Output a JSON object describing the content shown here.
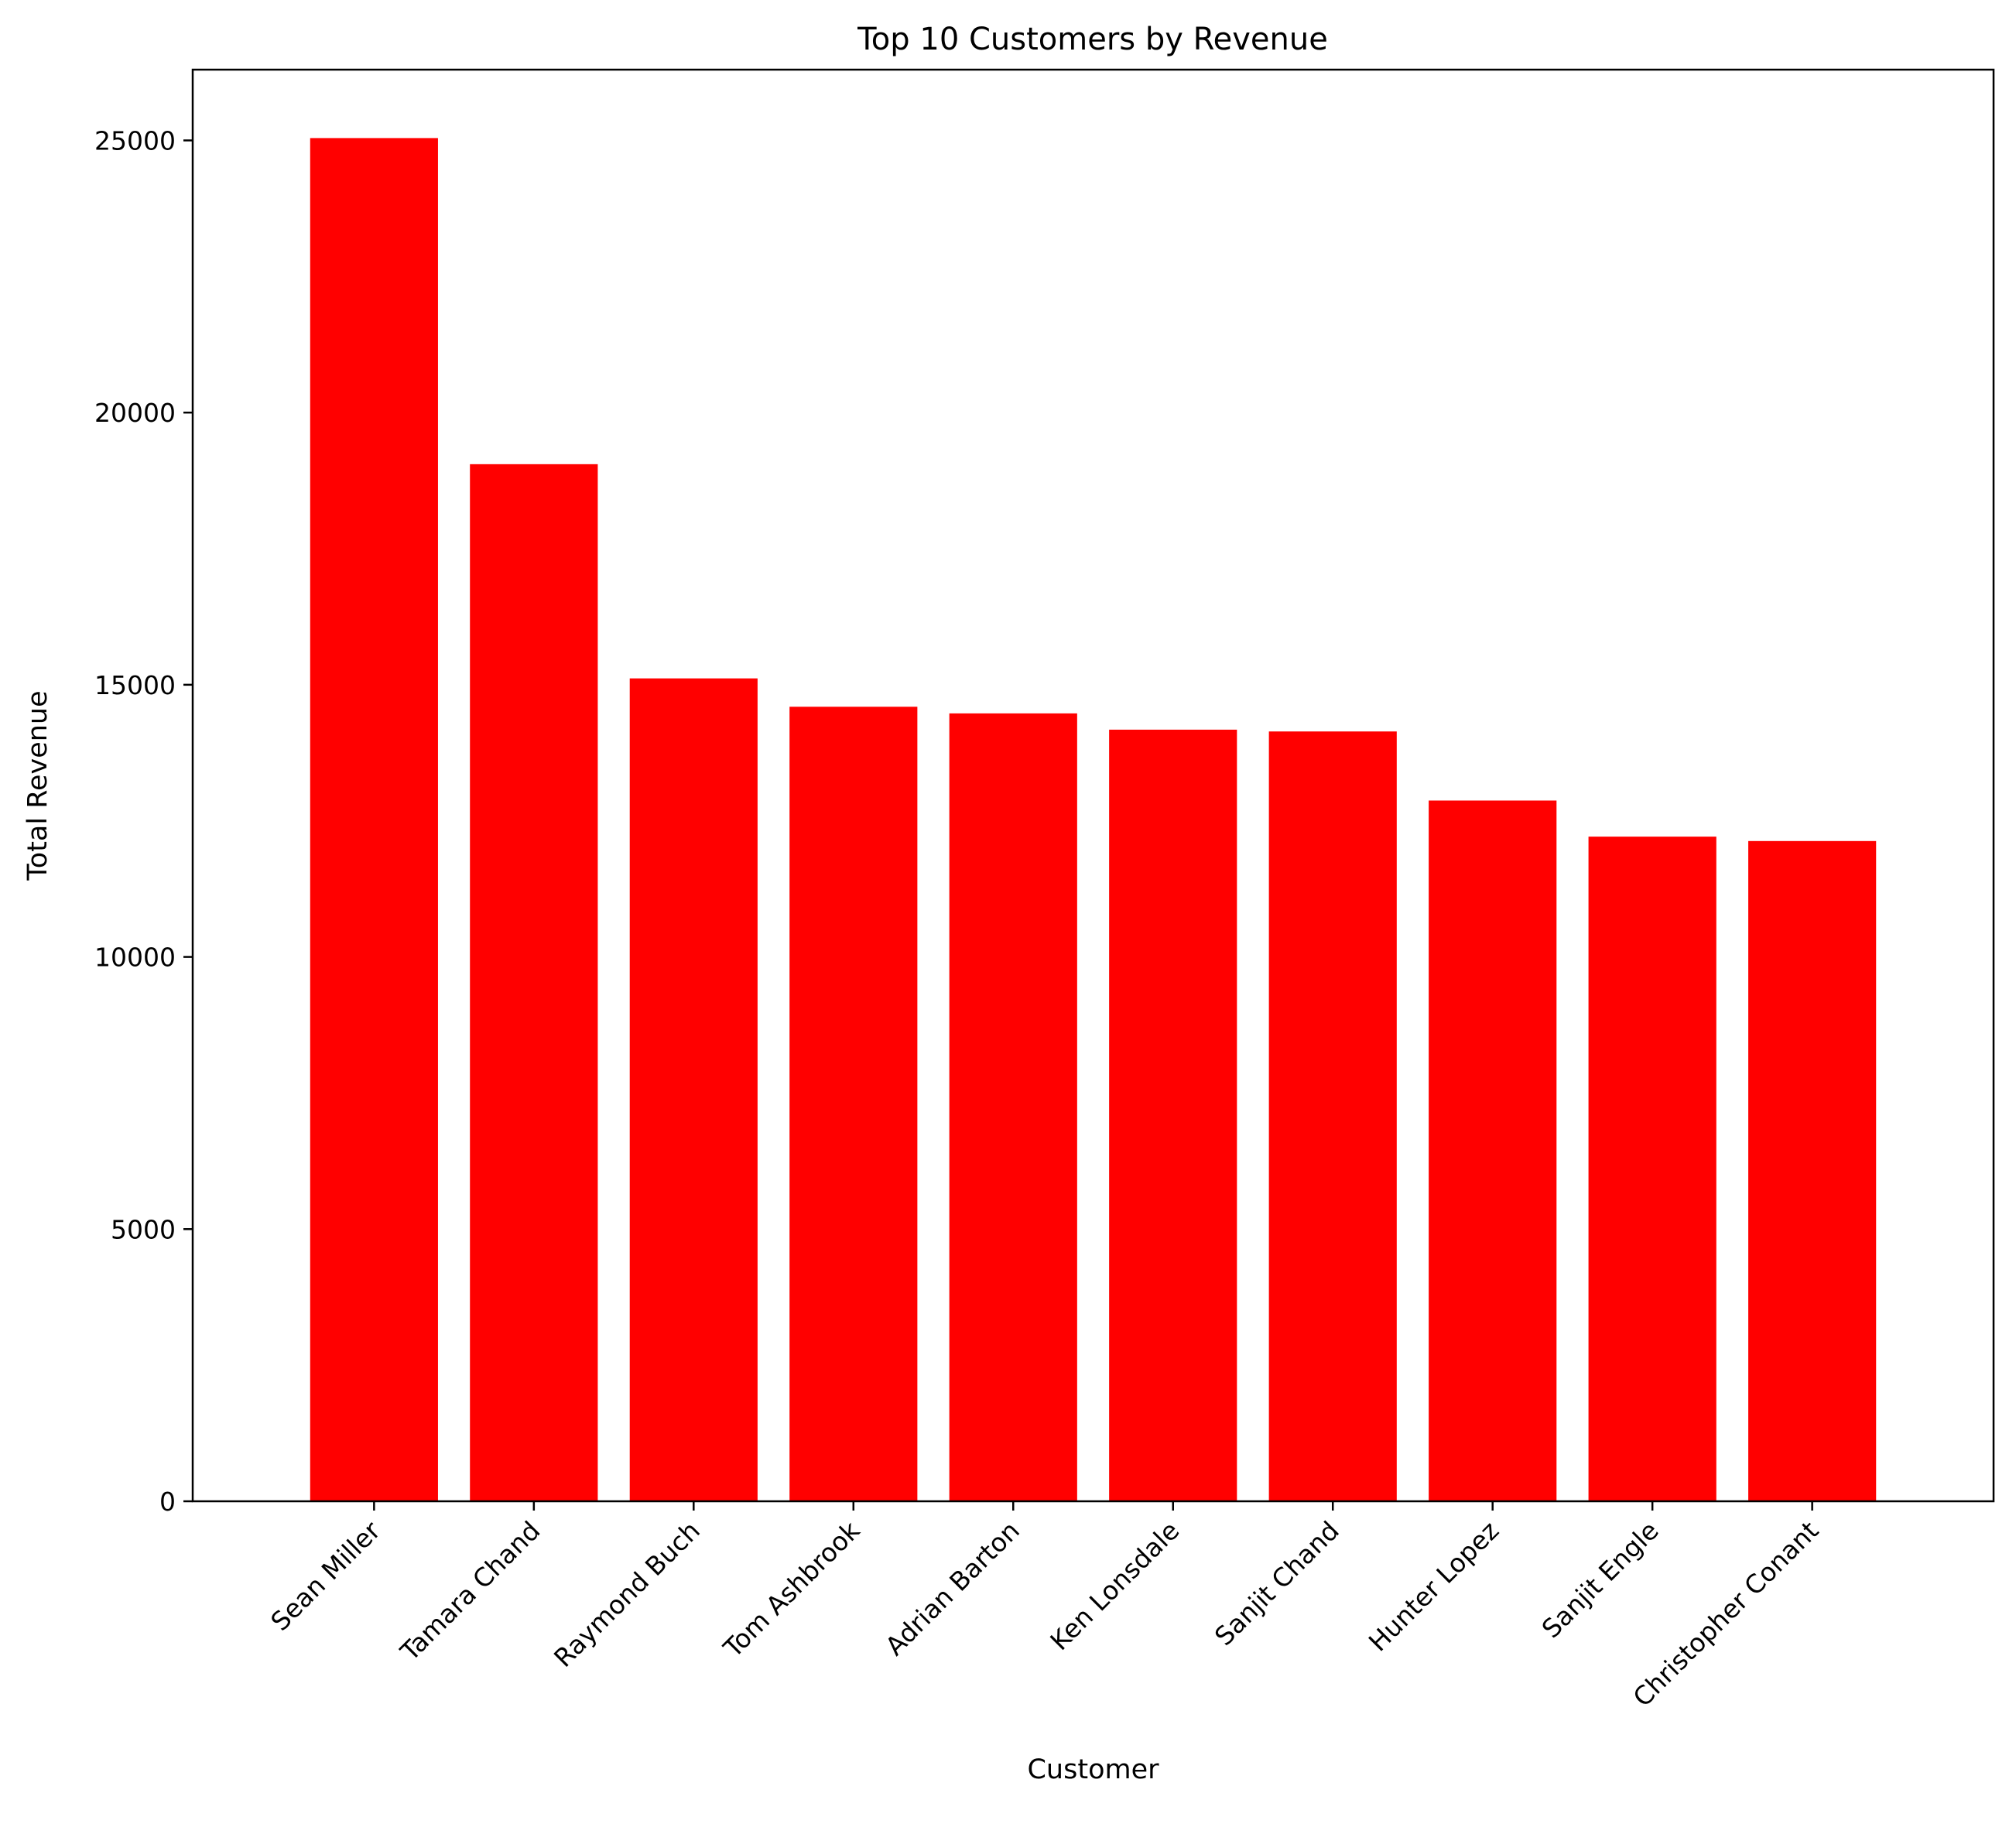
{
  "chart_data": {
    "type": "bar",
    "title": "Top 10 Customers by Revenue",
    "xlabel": "Customer",
    "ylabel": "Total Revenue",
    "categories": [
      "Sean Miller",
      "Tamara Chand",
      "Raymond Buch",
      "Tom Ashbrook",
      "Adrian Barton",
      "Ken Lonsdale",
      "Sanjit Chand",
      "Hunter Lopez",
      "Sanjit Engle",
      "Christopher Conant"
    ],
    "values": [
      25043,
      19052,
      15117,
      14596,
      14474,
      14175,
      14142,
      12873,
      12210,
      12129
    ],
    "ylim": [
      0,
      26300
    ],
    "yticks": [
      0,
      5000,
      10000,
      15000,
      20000,
      25000
    ],
    "grid": false,
    "legend": "none",
    "bar_color": "#ff0000"
  }
}
